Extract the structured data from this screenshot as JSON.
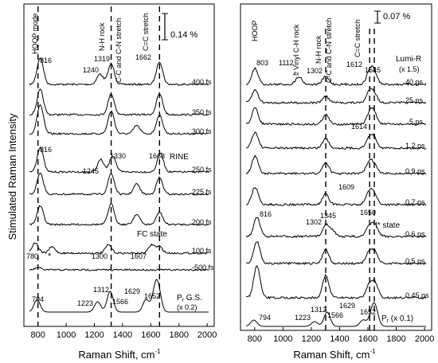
{
  "figure": {
    "ylabel": "Stimulated Raman Intensity",
    "xlabel_main": "Raman Shift, cm",
    "xlabel_sup": "-1"
  },
  "chart_data": [
    {
      "type": "line",
      "panel": "left",
      "xlim": [
        700,
        2050
      ],
      "xticks": [
        800,
        1000,
        1200,
        1400,
        1600,
        1800,
        2000
      ],
      "scale_bar": "0.14 %",
      "dashed_lines_x": [
        800,
        1319,
        1662
      ],
      "band_labels": [
        {
          "text": "HOOP mode",
          "x": 816
        },
        {
          "text": "N-H rock",
          "x": 1319
        },
        {
          "text": "C-C and C-N stretch",
          "x": 1400
        },
        {
          "text": "C=C stretch",
          "x": 1662
        }
      ],
      "series": [
        {
          "name": "400 fs",
          "peaks": [
            [
              816,
              1.3
            ],
            [
              1240,
              0.5
            ],
            [
              1319,
              1.0
            ],
            [
              1662,
              1.1
            ]
          ]
        },
        {
          "name": "350 fs",
          "peaks": [
            [
              816,
              1.2
            ],
            [
              1319,
              1.0
            ],
            [
              1662,
              1.0
            ]
          ]
        },
        {
          "name": "300 fs",
          "peaks": [
            [
              816,
              1.4
            ],
            [
              1319,
              1.1
            ],
            [
              1500,
              0.4
            ],
            [
              1662,
              0.9
            ]
          ]
        },
        {
          "name": "250 fs",
          "peaks": [
            [
              816,
              1.2
            ],
            [
              1245,
              0.6
            ],
            [
              1330,
              0.8
            ],
            [
              1668,
              0.9
            ]
          ]
        },
        {
          "name": "225 fs",
          "peaks": [
            [
              816,
              1.0
            ],
            [
              1319,
              1.0
            ],
            [
              1500,
              0.5
            ],
            [
              1662,
              0.8
            ]
          ]
        },
        {
          "name": "200 fs",
          "peaks": [
            [
              816,
              0.9
            ],
            [
              1319,
              1.0
            ],
            [
              1500,
              0.5
            ],
            [
              1662,
              0.6
            ]
          ]
        },
        {
          "name": "100 fs",
          "peaks": [
            [
              780,
              0.5
            ],
            [
              900,
              0.3
            ],
            [
              1300,
              0.4
            ],
            [
              1607,
              0.4
            ],
            [
              1662,
              0.3
            ]
          ]
        },
        {
          "name": "-500 fs",
          "peaks": [
            [
              800,
              0.1
            ]
          ]
        },
        {
          "name": "P, G.S. (x 0.2)",
          "peaks": [
            [
              794,
              0.6
            ],
            [
              1223,
              0.5
            ],
            [
              1312,
              1.0
            ],
            [
              1566,
              0.6
            ],
            [
              1629,
              0.8
            ],
            [
              1652,
              1.0
            ]
          ]
        }
      ],
      "labels": {
        "t400": "400 fs",
        "t350": "350 fs",
        "t300": "300 fs",
        "t250": "250 fs",
        "t225": "225 fs",
        "t200": "200 fs",
        "t100": "100 fs",
        "tm500": "-500 fs",
        "rine": "RINE",
        "fc": "FC state",
        "star": "*",
        "p_gs": "P",
        "p_sub": "r",
        "p_gs2": " G.S.",
        "p_scale": "(x 0.2)",
        "pk816": "816",
        "pk1240": "1240",
        "pk1319": "1319",
        "pk1662": "1662",
        "pk816b": "816",
        "pk1245": "1245",
        "pk1330": "1330",
        "pk1668": "1668",
        "pk780": "780",
        "pk1300": "1300",
        "pk1607": "1607",
        "pk794": "794",
        "pk1223": "1223",
        "pk1312": "1312",
        "pk1566": "1566",
        "pk1629": "1629",
        "pk1652": "1652"
      }
    },
    {
      "type": "line",
      "panel": "right",
      "xlim": [
        700,
        2050
      ],
      "xticks": [
        800,
        1000,
        1200,
        1400,
        1600,
        1800,
        2000
      ],
      "scale_bar": "0.07 %",
      "dashed_lines_x": [
        1302,
        1612,
        1645
      ],
      "band_labels": [
        {
          "text": "HOOP",
          "x": 803
        },
        {
          "text": "Vinyl C-H rock",
          "x": 1112
        },
        {
          "text": "N-H rock",
          "x": 1302
        },
        {
          "text": "C-C and C-N stretch",
          "x": 1390
        },
        {
          "text": "C=C stretch",
          "x": 1640
        }
      ],
      "series": [
        {
          "name": "40 ps",
          "peaks": [
            [
              803,
              1.0
            ],
            [
              1112,
              0.5
            ],
            [
              1302,
              0.5
            ],
            [
              1612,
              0.8
            ],
            [
              1645,
              0.7
            ]
          ]
        },
        {
          "name": "25 ps",
          "peaks": [
            [
              803,
              0.8
            ],
            [
              1302,
              0.4
            ],
            [
              1612,
              0.7
            ],
            [
              1645,
              0.5
            ]
          ]
        },
        {
          "name": "5 ps",
          "peaks": [
            [
              803,
              1.0
            ],
            [
              1302,
              0.6
            ],
            [
              1614,
              0.7
            ],
            [
              1645,
              0.6
            ]
          ]
        },
        {
          "name": "1.2 ps",
          "peaks": [
            [
              803,
              1.0
            ],
            [
              1302,
              0.6
            ],
            [
              1609,
              0.6
            ],
            [
              1645,
              0.6
            ]
          ]
        },
        {
          "name": "0.9 ps",
          "peaks": [
            [
              803,
              1.1
            ],
            [
              1302,
              0.7
            ],
            [
              1609,
              0.7
            ],
            [
              1645,
              0.5
            ]
          ]
        },
        {
          "name": "0.7 ps",
          "peaks": [
            [
              803,
              1.1
            ],
            [
              1302,
              0.7
            ],
            [
              1609,
              0.8
            ],
            [
              1645,
              0.6
            ]
          ]
        },
        {
          "name": "0.6 ps",
          "peaks": [
            [
              816,
              1.2
            ],
            [
              1302,
              0.7
            ],
            [
              1345,
              0.4
            ],
            [
              1609,
              0.6
            ],
            [
              1650,
              0.7
            ]
          ]
        },
        {
          "name": "0.5 ps",
          "peaks": [
            [
              816,
              1.4
            ],
            [
              1302,
              0.9
            ],
            [
              1609,
              0.7
            ],
            [
              1650,
              0.7
            ]
          ]
        },
        {
          "name": "0.45 ps",
          "peaks": [
            [
              816,
              2.0
            ],
            [
              1302,
              1.4
            ],
            [
              1609,
              0.8
            ],
            [
              1650,
              0.9
            ]
          ]
        },
        {
          "name": "Pr (x 0.1)",
          "peaks": [
            [
              794,
              0.4
            ],
            [
              1223,
              0.3
            ],
            [
              1312,
              0.9
            ],
            [
              1566,
              0.4
            ],
            [
              1629,
              0.7
            ],
            [
              1652,
              1.0
            ]
          ]
        }
      ],
      "labels": {
        "t40": "40 ps",
        "t25": "25 ps",
        "t5": "5 ps",
        "t12": "1.2 ps",
        "t09": "0.9 ps",
        "t07": "0.7 ps",
        "t06": "0.6 ps",
        "t05": "0.5 ps",
        "t045": "0.45 ps",
        "lumi": "Lumi-R",
        "lumi_scale": "(x 1.5)",
        "istate": "I* state",
        "pr": "P",
        "pr_sub": "r",
        "pr_scale": " (x 0.1)",
        "x4": "4x",
        "pk803": "803",
        "pk1112": "1112",
        "pk1302": "1302",
        "pk1612": "1612",
        "pk1645": "1645",
        "pk1614": "1614",
        "pk1609": "1609",
        "pk816": "816",
        "pk1302b": "1302",
        "pk1345": "1345",
        "pk1650": "1650",
        "pk794": "794",
        "pk1223": "1223",
        "pk1312": "1312",
        "pk1566": "1566",
        "pk1629": "1629",
        "pk1652": "1652"
      }
    }
  ]
}
